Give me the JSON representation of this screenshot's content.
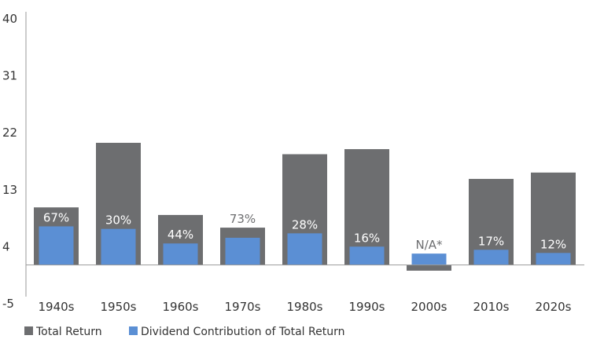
{
  "chart_data": {
    "type": "bar",
    "title": "",
    "xlabel": "",
    "ylabel": "",
    "ylim": [
      -5,
      40
    ],
    "yticks": [
      40,
      31,
      22,
      13,
      4,
      -5
    ],
    "grid": false,
    "legend_placement": "bottom-left",
    "categories": [
      "1940s",
      "1950s",
      "1960s",
      "1970s",
      "1980s",
      "1990s",
      "2000s",
      "2010s",
      "2020s"
    ],
    "series": [
      {
        "name": "Total Return",
        "color": "#6d6e70",
        "values": [
          9.1,
          19.3,
          7.9,
          5.9,
          17.5,
          18.3,
          -0.9,
          13.6,
          14.6
        ]
      },
      {
        "name": "Dividend Contribution of Total Return",
        "color": "#5b8fd4",
        "values": [
          6.1,
          5.7,
          3.4,
          4.3,
          5.0,
          2.9,
          1.8,
          2.4,
          1.9
        ]
      }
    ],
    "data_labels": [
      "67%",
      "30%",
      "44%",
      "73%",
      "28%",
      "16%",
      "N/A*",
      "17%",
      "12%"
    ]
  }
}
